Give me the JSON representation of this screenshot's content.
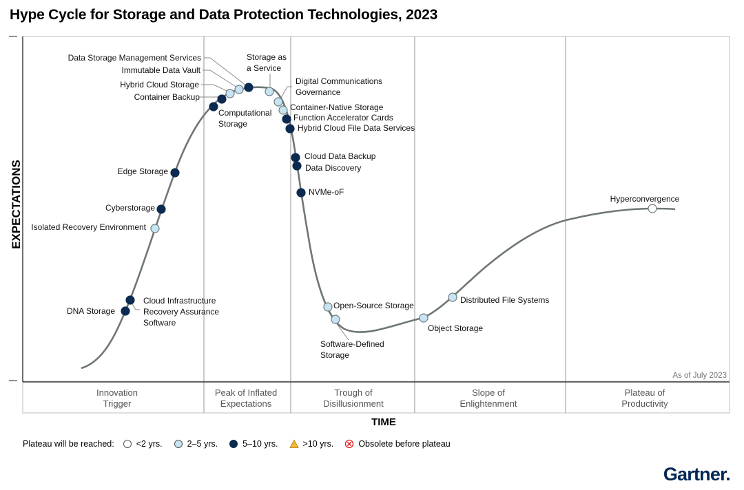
{
  "title": "Hype Cycle for Storage and Data Protection Technologies, 2023",
  "chart_data": {
    "type": "scatter",
    "title": "Hype Cycle for Storage and Data Protection Technologies, 2023",
    "xlabel": "TIME",
    "ylabel": "EXPECTATIONS",
    "annotation": "As of July 2023",
    "phases": [
      "Innovation\nTrigger",
      "Peak of Inflated\nExpectations",
      "Trough of\nDisillusionment",
      "Slope of\nEnlightenment",
      "Plateau of\nProductivity"
    ],
    "categories": [
      "<2 yrs.",
      "2–5 yrs.",
      "5–10 yrs.",
      ">10 yrs.",
      "Obsolete before plateau"
    ],
    "technologies": [
      {
        "name": "DNA Storage",
        "plateau": "5–10 yrs.",
        "phase": "Innovation Trigger"
      },
      {
        "name": "Cloud Infrastructure Recovery Assurance Software",
        "plateau": "5–10 yrs.",
        "phase": "Innovation Trigger"
      },
      {
        "name": "Isolated Recovery Environment",
        "plateau": "2–5 yrs.",
        "phase": "Innovation Trigger"
      },
      {
        "name": "Cyberstorage",
        "plateau": "5–10 yrs.",
        "phase": "Innovation Trigger"
      },
      {
        "name": "Edge Storage",
        "plateau": "5–10 yrs.",
        "phase": "Innovation Trigger"
      },
      {
        "name": "Computational Storage",
        "plateau": "5–10 yrs.",
        "phase": "Peak of Inflated Expectations"
      },
      {
        "name": "Container Backup",
        "plateau": "5–10 yrs.",
        "phase": "Peak of Inflated Expectations"
      },
      {
        "name": "Hybrid Cloud Storage",
        "plateau": "2–5 yrs.",
        "phase": "Peak of Inflated Expectations"
      },
      {
        "name": "Immutable Data Vault",
        "plateau": "2–5 yrs.",
        "phase": "Peak of Inflated Expectations"
      },
      {
        "name": "Data Storage Management Services",
        "plateau": "5–10 yrs.",
        "phase": "Peak of Inflated Expectations"
      },
      {
        "name": "Storage as a Service",
        "plateau": "2–5 yrs.",
        "phase": "Peak of Inflated Expectations"
      },
      {
        "name": "Digital Communications Governance",
        "plateau": "2–5 yrs.",
        "phase": "Peak of Inflated Expectations"
      },
      {
        "name": "Container-Native Storage",
        "plateau": "2–5 yrs.",
        "phase": "Peak of Inflated Expectations"
      },
      {
        "name": "Function Accelerator Cards",
        "plateau": "5–10 yrs.",
        "phase": "Trough of Disillusionment"
      },
      {
        "name": "Hybrid Cloud File Data Services",
        "plateau": "5–10 yrs.",
        "phase": "Trough of Disillusionment"
      },
      {
        "name": "Cloud Data Backup",
        "plateau": "5–10 yrs.",
        "phase": "Trough of Disillusionment"
      },
      {
        "name": "Data Discovery",
        "plateau": "5–10 yrs.",
        "phase": "Trough of Disillusionment"
      },
      {
        "name": "NVMe-oF",
        "plateau": "5–10 yrs.",
        "phase": "Trough of Disillusionment"
      },
      {
        "name": "Open-Source Storage",
        "plateau": "2–5 yrs.",
        "phase": "Trough of Disillusionment"
      },
      {
        "name": "Software-Defined Storage",
        "plateau": "2–5 yrs.",
        "phase": "Trough of Disillusionment"
      },
      {
        "name": "Object Storage",
        "plateau": "2–5 yrs.",
        "phase": "Slope of Enlightenment"
      },
      {
        "name": "Distributed File Systems",
        "plateau": "2–5 yrs.",
        "phase": "Slope of Enlightenment"
      },
      {
        "name": "Hyperconvergence",
        "plateau": "<2 yrs.",
        "phase": "Plateau of Productivity"
      }
    ]
  },
  "legend": {
    "title": "Plateau will be reached:",
    "items": [
      "<2 yrs.",
      "2–5 yrs.",
      "5–10 yrs.",
      ">10 yrs.",
      "Obsolete before plateau"
    ]
  },
  "colors": {
    "lt2": "#ffffff",
    "y2to5": "#c6e4f2",
    "y5to10": "#0c2a4f",
    "gt10": "#f5b82e",
    "obsolete": "#e02020",
    "curve": "#6e7775",
    "divider": "#a6a6a6"
  },
  "logo": "Gartner."
}
